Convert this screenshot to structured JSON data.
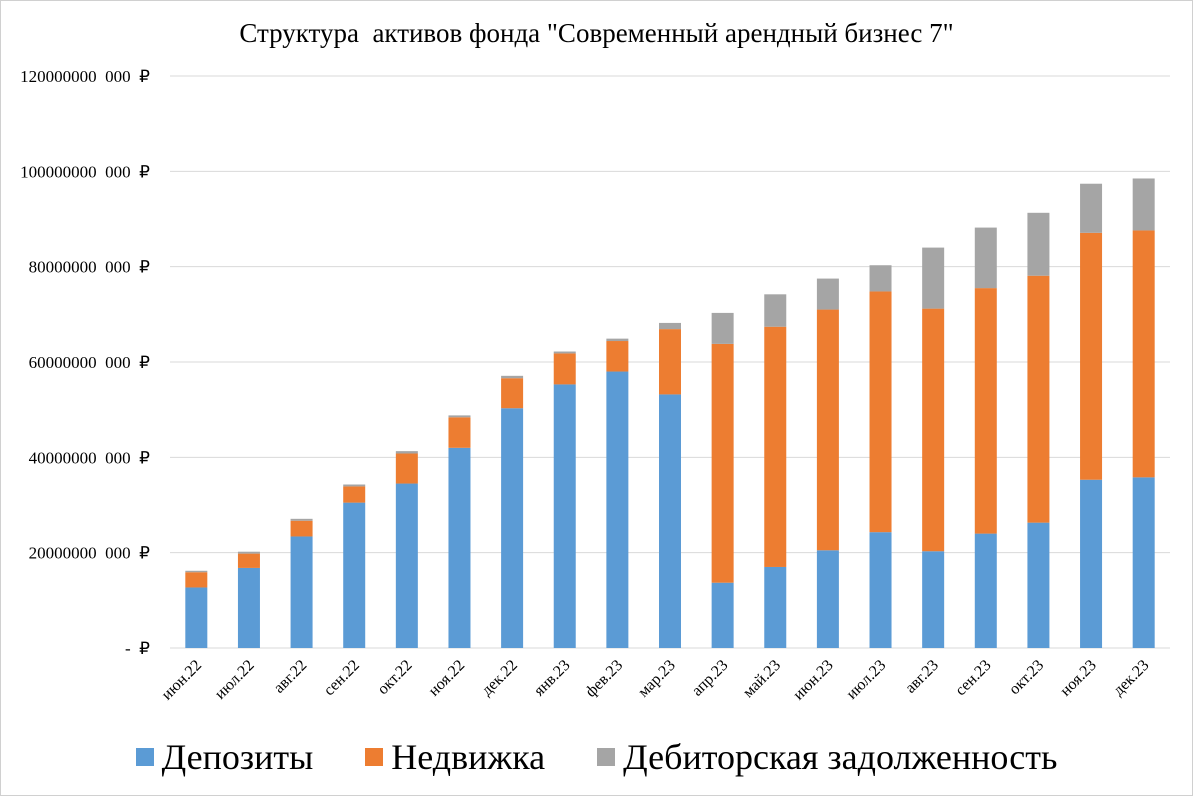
{
  "chart_data": {
    "type": "bar",
    "stacked": true,
    "title": "Структура  активов фонда \"Современный арендный бизнес 7\"",
    "categories": [
      "июн.22",
      "июл.22",
      "авг.22",
      "сен.22",
      "окт.22",
      "ноя.22",
      "дек.22",
      "янв.23",
      "фев.23",
      "мар.23",
      "апр.23",
      "май.23",
      "июн.23",
      "июл.23",
      "авг.23",
      "сен.23",
      "окт.23",
      "ноя.23",
      "дек.23"
    ],
    "y_ticks": [
      "-  ₽",
      "20000000  000  ₽",
      "40000000  000  ₽",
      "60000000  000  ₽",
      "80000000  000  ₽",
      "100000000  000  ₽",
      "120000000  000  ₽"
    ],
    "ylim": [
      0,
      120000000
    ],
    "grid": true,
    "legend_position": "bottom",
    "series": [
      {
        "name": "Депозиты",
        "color": "#5b9bd5",
        "values": [
          12700000,
          16800000,
          23400000,
          30500000,
          34500000,
          42000000,
          50300000,
          55300000,
          58000000,
          53200000,
          13700000,
          17000000,
          20500000,
          24300000,
          20300000,
          24000000,
          26300000,
          35300000,
          35800000
        ]
      },
      {
        "name": "Недвижка",
        "color": "#ed7d31",
        "values": [
          3200000,
          3000000,
          3300000,
          3400000,
          6300000,
          6400000,
          6300000,
          6500000,
          6400000,
          13700000,
          50100000,
          50400000,
          50500000,
          50500000,
          50900000,
          51500000,
          51800000,
          51800000,
          51800000
        ]
      },
      {
        "name": "Дебиторская задолженность",
        "color": "#a5a5a5",
        "values": [
          300000,
          400000,
          400000,
          400000,
          500000,
          400000,
          500000,
          400000,
          500000,
          1300000,
          6500000,
          6800000,
          6500000,
          5500000,
          12800000,
          12700000,
          13200000,
          10300000,
          10900000
        ]
      }
    ]
  }
}
